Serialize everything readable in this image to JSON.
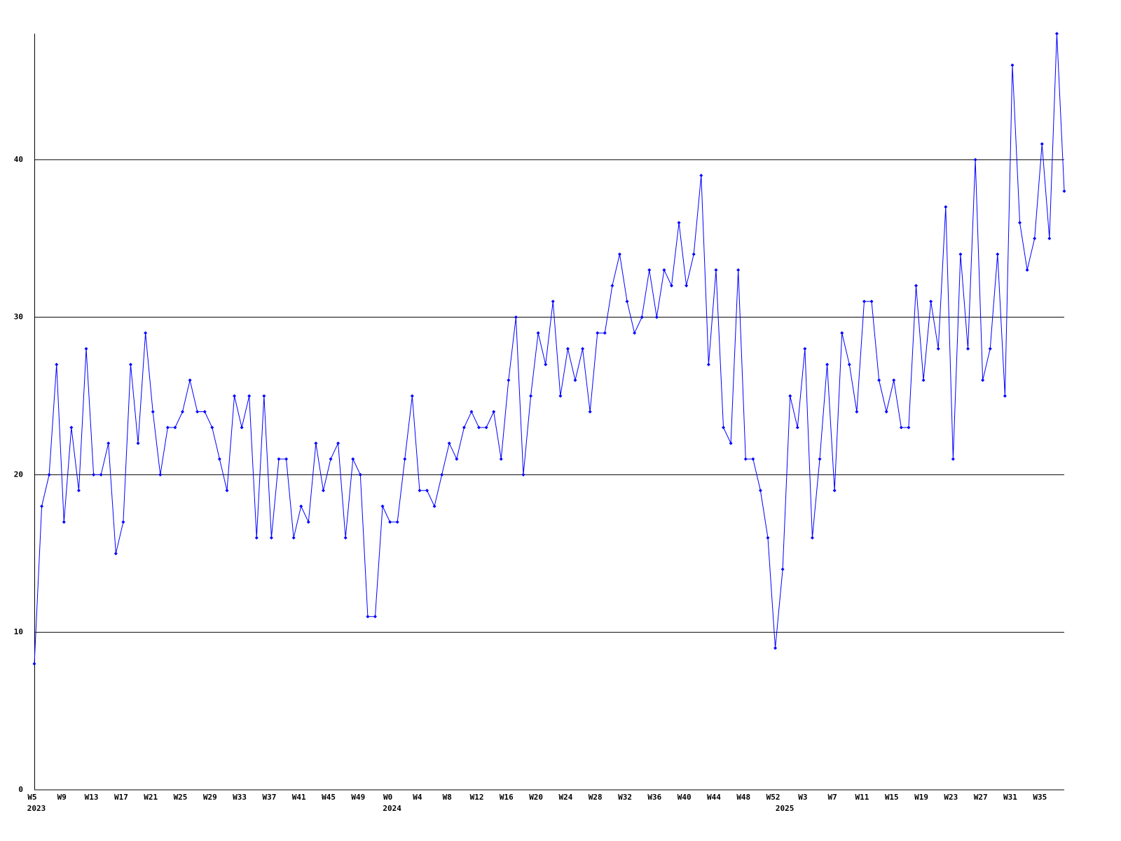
{
  "chart_data": {
    "type": "line",
    "categories": [
      "W5",
      null,
      null,
      null,
      "W9",
      null,
      null,
      null,
      "W13",
      null,
      null,
      null,
      "W17",
      null,
      null,
      null,
      "W21",
      null,
      null,
      null,
      "W25",
      null,
      null,
      null,
      "W29",
      null,
      null,
      null,
      "W33",
      null,
      null,
      null,
      "W37",
      null,
      null,
      null,
      "W41",
      null,
      null,
      null,
      "W45",
      null,
      null,
      null,
      "W49",
      null,
      null,
      null,
      "W0",
      null,
      null,
      null,
      "W4",
      null,
      null,
      null,
      "W8",
      null,
      null,
      null,
      "W12",
      null,
      null,
      null,
      "W16",
      null,
      null,
      null,
      "W20",
      null,
      null,
      null,
      "W24",
      null,
      null,
      null,
      "W28",
      null,
      null,
      null,
      "W32",
      null,
      null,
      null,
      "W36",
      null,
      null,
      null,
      "W40",
      null,
      null,
      null,
      "W44",
      null,
      null,
      null,
      "W48",
      null,
      null,
      null,
      "W52",
      null,
      null,
      null,
      "W3",
      null,
      null,
      null,
      "W7",
      null,
      null,
      null,
      "W11",
      null,
      null,
      null,
      "W15",
      null,
      null,
      null,
      "W19",
      null,
      null,
      null,
      "W23",
      null,
      null,
      null,
      "W27",
      null,
      null,
      null,
      "W31",
      null,
      null,
      null,
      "W35",
      null,
      null,
      null
    ],
    "category_years": [
      "2023",
      null,
      null,
      null,
      null,
      null,
      null,
      null,
      null,
      null,
      null,
      null,
      null,
      null,
      null,
      null,
      null,
      null,
      null,
      null,
      null,
      null,
      null,
      null,
      null,
      null,
      null,
      null,
      null,
      null,
      null,
      null,
      null,
      null,
      null,
      null,
      null,
      null,
      null,
      null,
      null,
      null,
      null,
      null,
      null,
      null,
      null,
      null,
      "2024",
      null,
      null,
      null,
      null,
      null,
      null,
      null,
      null,
      null,
      null,
      null,
      null,
      null,
      null,
      null,
      null,
      null,
      null,
      null,
      null,
      null,
      null,
      null,
      null,
      null,
      null,
      null,
      null,
      null,
      null,
      null,
      null,
      null,
      null,
      null,
      null,
      null,
      null,
      null,
      null,
      null,
      null,
      null,
      null,
      null,
      null,
      null,
      null,
      null,
      null,
      null,
      null,
      "2025",
      null,
      null,
      null,
      null,
      null,
      null,
      null,
      null,
      null,
      null,
      null,
      null,
      null,
      null,
      null,
      null,
      null,
      null,
      null,
      null,
      null,
      null,
      null,
      null,
      null,
      null,
      null,
      null,
      null,
      null,
      null,
      null,
      null,
      null,
      null,
      null,
      null,
      null
    ],
    "series": [
      {
        "color": "#0000ff",
        "values": [
          8,
          18,
          20,
          27,
          17,
          23,
          19,
          28,
          20,
          20,
          22,
          15,
          17,
          27,
          22,
          29,
          24,
          20,
          23,
          23,
          24,
          26,
          24,
          24,
          23,
          21,
          19,
          25,
          23,
          25,
          16,
          25,
          16,
          21,
          21,
          16,
          18,
          17,
          22,
          19,
          21,
          22,
          16,
          21,
          20,
          11,
          11,
          18,
          17,
          17,
          21,
          25,
          19,
          19,
          18,
          20,
          22,
          21,
          23,
          24,
          23,
          23,
          24,
          21,
          26,
          30,
          20,
          25,
          29,
          27,
          31,
          25,
          28,
          26,
          28,
          24,
          29,
          29,
          32,
          34,
          31,
          29,
          30,
          33,
          30,
          33,
          32,
          36,
          32,
          34,
          39,
          27,
          33,
          23,
          22,
          33,
          21,
          21,
          19,
          16,
          9,
          14,
          25,
          23,
          28,
          16,
          21,
          27,
          19,
          29,
          27,
          24,
          31,
          31,
          26,
          24,
          26,
          23,
          23,
          32,
          26,
          31,
          28,
          37,
          21,
          34,
          28,
          40,
          26,
          28,
          34,
          25,
          46,
          36,
          33,
          35,
          41,
          35,
          48,
          38
        ]
      }
    ],
    "ylim": [
      0,
      48
    ],
    "yticks": [
      0,
      10,
      20,
      30,
      40
    ],
    "grid": true
  }
}
